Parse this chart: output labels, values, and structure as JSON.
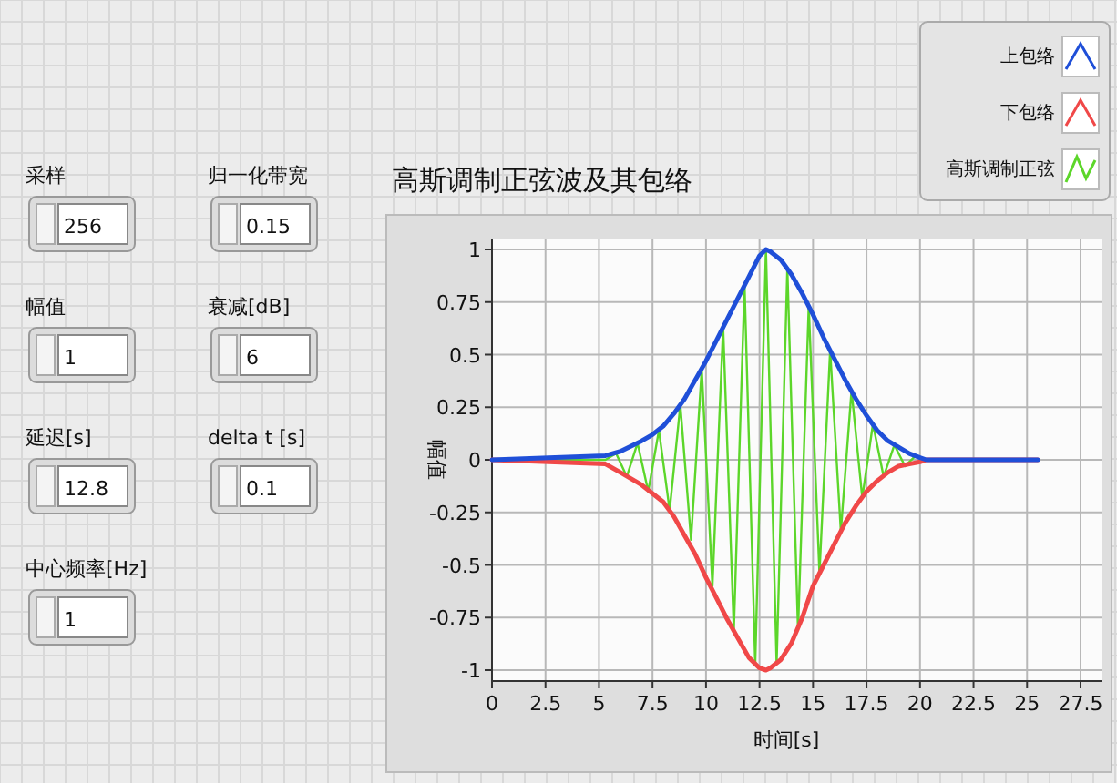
{
  "chart_data": [
    {
      "type": "other",
      "annotations": [
        "采样",
        "256",
        "幅值",
        "1",
        "延迟[s]",
        "12.8",
        "中心频率[Hz]",
        "1",
        "归一化带宽",
        "0.15",
        "衰减[dB]",
        "6",
        "delta t [s]",
        "0.1"
      ]
    },
    {
      "type": "line",
      "title": "高斯调制正弦波及其包络",
      "xlabel": "时间[s]",
      "ylabel": "幅值",
      "xlim": [
        0,
        27.5
      ],
      "xticks": [
        0,
        2.5,
        5,
        7.5,
        10,
        12.5,
        15,
        17.5,
        20,
        22.5,
        25,
        27.5
      ],
      "ylim": [
        -1,
        1
      ],
      "yticks": [
        -1,
        -0.75,
        -0.5,
        -0.25,
        0,
        0.25,
        0.5,
        0.75,
        1
      ],
      "grid": true,
      "legend": "top right",
      "marker": "none",
      "line_style": "solid",
      "series": [
        {
          "name": "上包络",
          "color": "#1f4fd8",
          "x": [
            0,
            5.3,
            6,
            7,
            7.5,
            8,
            8.5,
            9,
            9.5,
            10,
            10.5,
            11,
            11.5,
            12,
            12.5,
            12.8,
            13,
            13.5,
            14,
            14.5,
            15,
            15.5,
            16,
            16.5,
            17,
            17.5,
            18,
            18.5,
            19,
            19.5,
            20,
            20.3,
            25.5
          ],
          "values": [
            0,
            0.02,
            0.04,
            0.09,
            0.12,
            0.16,
            0.22,
            0.29,
            0.38,
            0.47,
            0.57,
            0.67,
            0.77,
            0.87,
            0.97,
            1,
            0.99,
            0.95,
            0.88,
            0.79,
            0.69,
            0.58,
            0.48,
            0.38,
            0.29,
            0.21,
            0.14,
            0.09,
            0.06,
            0.03,
            0.01,
            0,
            0
          ]
        },
        {
          "name": "下包络",
          "color": "#f04848",
          "x": [
            0,
            5.3,
            6,
            7,
            8,
            8.5,
            9,
            9.5,
            10,
            10.5,
            11,
            11.5,
            12,
            12.5,
            12.8,
            13,
            13.5,
            14,
            14.5,
            15,
            15.5,
            16,
            16.5,
            17,
            17.5,
            18,
            18.5,
            19,
            19.5,
            20,
            20.3,
            25.5
          ],
          "values": [
            0,
            -0.02,
            -0.06,
            -0.12,
            -0.2,
            -0.27,
            -0.36,
            -0.45,
            -0.56,
            -0.66,
            -0.76,
            -0.85,
            -0.94,
            -0.99,
            -1,
            -0.99,
            -0.95,
            -0.87,
            -0.75,
            -0.6,
            -0.5,
            -0.4,
            -0.3,
            -0.22,
            -0.15,
            -0.1,
            -0.06,
            -0.03,
            -0.02,
            -0.01,
            0,
            0
          ]
        },
        {
          "name": "高斯调制正弦",
          "color": "#5cd62a",
          "x": [
            0,
            5.3,
            5.8,
            6.3,
            6.8,
            7.3,
            7.8,
            8.3,
            8.8,
            9.3,
            9.8,
            10.3,
            10.8,
            11.3,
            11.8,
            12.3,
            12.8,
            13.3,
            13.8,
            14.3,
            14.8,
            15.3,
            15.8,
            16.3,
            16.8,
            17.3,
            17.8,
            18.3,
            18.8,
            19.3,
            19.8,
            20.3,
            25.5
          ],
          "values": [
            0,
            0,
            0.03,
            -0.08,
            0.08,
            -0.15,
            0.14,
            -0.24,
            0.26,
            -0.38,
            0.43,
            -0.6,
            0.63,
            -0.81,
            0.83,
            -0.97,
            1,
            -0.97,
            0.91,
            -0.81,
            0.73,
            -0.54,
            0.52,
            -0.34,
            0.33,
            -0.18,
            0.17,
            -0.08,
            0.07,
            -0.03,
            0.02,
            0,
            0
          ]
        }
      ]
    }
  ]
}
